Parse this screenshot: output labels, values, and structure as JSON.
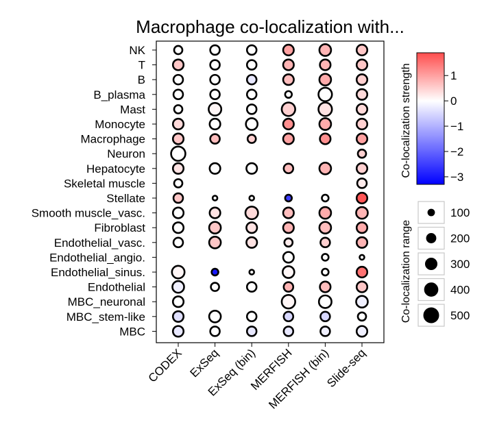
{
  "chart_data": {
    "type": "dot_matrix",
    "title": "Macrophage co-localization with...",
    "rows": [
      "NK",
      "T",
      "B",
      "B_plasma",
      "Mast",
      "Monocyte",
      "Macrophage",
      "Neuron",
      "Hepatocyte",
      "Skeletal muscle",
      "Stellate",
      "Smooth muscle_vasc.",
      "Fibroblast",
      "Endothelial_vasc.",
      "Endothelial_angio.",
      "Endothelial_sinus.",
      "Endothelial",
      "MBC_neuronal",
      "MBC_stem-like",
      "MBC"
    ],
    "columns": [
      "CODEX",
      "ExSeq",
      "ExSeq (bin)",
      "MERFISH",
      "MERFISH (bin)",
      "Slide-seq"
    ],
    "strength": [
      [
        0.0,
        0.0,
        0.0,
        1.0,
        0.8,
        0.6
      ],
      [
        0.6,
        0.0,
        0.0,
        0.8,
        0.8,
        0.6
      ],
      [
        0.0,
        0.0,
        -0.3,
        0.7,
        0.9,
        0.5
      ],
      [
        0.0,
        0.0,
        0.0,
        0.0,
        0.0,
        0.4
      ],
      [
        0.0,
        0.1,
        0.0,
        0.5,
        0.3,
        0.4
      ],
      [
        0.4,
        0.0,
        0.0,
        1.2,
        0.9,
        0.5
      ],
      [
        0.6,
        0.7,
        0.5,
        1.0,
        1.2,
        1.0
      ],
      [
        0.0,
        null,
        null,
        null,
        null,
        0.5
      ],
      [
        0.3,
        0.0,
        0.0,
        0.7,
        0.8,
        0.5
      ],
      [
        0.0,
        null,
        null,
        null,
        null,
        0.2
      ],
      [
        0.6,
        0.0,
        0.0,
        -2.5,
        0.0,
        1.8
      ],
      [
        0.0,
        0.3,
        0.4,
        0.7,
        0.9,
        0.8
      ],
      [
        0.0,
        0.6,
        0.3,
        0.8,
        0.7,
        0.9
      ],
      [
        0.0,
        0.6,
        0.3,
        0.2,
        0.5,
        0.8
      ],
      [
        null,
        null,
        null,
        0.0,
        0.0,
        0.0
      ],
      [
        0.1,
        -3.0,
        0.0,
        0.1,
        0.0,
        1.5
      ],
      [
        -0.2,
        0.0,
        0.0,
        0.8,
        0.7,
        0.6
      ],
      [
        0.0,
        null,
        null,
        0.1,
        0.0,
        -0.2
      ],
      [
        -0.4,
        0.0,
        0.0,
        -0.5,
        -0.5,
        0.0
      ],
      [
        -0.3,
        0.0,
        -0.3,
        -0.3,
        -0.2,
        -0.2
      ]
    ],
    "range": [
      [
        150,
        200,
        200,
        250,
        300,
        250
      ],
      [
        250,
        200,
        200,
        250,
        250,
        250
      ],
      [
        200,
        200,
        200,
        250,
        300,
        250
      ],
      [
        200,
        200,
        200,
        100,
        400,
        250
      ],
      [
        150,
        350,
        200,
        400,
        400,
        250
      ],
      [
        250,
        250,
        300,
        250,
        300,
        250
      ],
      [
        250,
        200,
        150,
        250,
        250,
        250
      ],
      [
        450,
        null,
        null,
        null,
        null,
        150
      ],
      [
        250,
        250,
        250,
        200,
        300,
        250
      ],
      [
        150,
        null,
        null,
        null,
        null,
        200
      ],
      [
        200,
        50,
        50,
        100,
        100,
        250
      ],
      [
        250,
        250,
        350,
        250,
        300,
        300
      ],
      [
        250,
        300,
        250,
        250,
        300,
        250
      ],
      [
        200,
        300,
        250,
        150,
        200,
        250
      ],
      [
        null,
        null,
        null,
        250,
        100,
        50
      ],
      [
        350,
        100,
        50,
        300,
        100,
        250
      ],
      [
        300,
        150,
        200,
        200,
        250,
        250
      ],
      [
        250,
        null,
        null,
        400,
        350,
        300
      ],
      [
        250,
        300,
        200,
        200,
        200,
        150
      ],
      [
        250,
        200,
        200,
        200,
        200,
        250
      ]
    ],
    "colorbar": {
      "label": "Co-localization strength",
      "min": -3.3,
      "max": 1.9,
      "ticks": [
        "1",
        "0",
        "−1",
        "−2",
        "−3"
      ],
      "tick_values": [
        1,
        0,
        -1,
        -2,
        -3
      ],
      "colors": {
        "negative": "#0000ff",
        "neutral": "#ffffff",
        "positive": "#ff4d4d"
      }
    },
    "size_legend": {
      "label": "Co-localization range",
      "entries": [
        "100",
        "200",
        "300",
        "400",
        "500"
      ],
      "values": [
        100,
        200,
        300,
        400,
        500
      ]
    }
  }
}
